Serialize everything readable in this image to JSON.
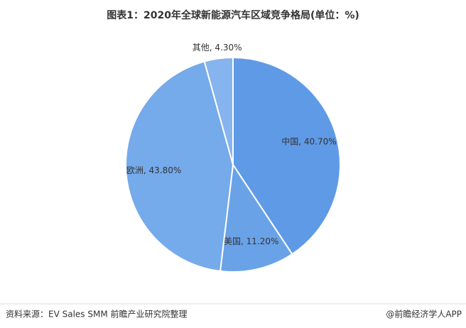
{
  "chart_data": {
    "type": "pie",
    "title": "图表1：2020年全球新能源汽车区域竞争格局(单位：%)",
    "values": [
      40.7,
      11.2,
      43.8,
      4.3
    ],
    "value_labels": [
      "中国, 40.70%",
      "美国, 11.20%",
      "欧洲, 43.80%",
      "其他, 4.30%"
    ],
    "colors": [
      "#5f9ae6",
      "#6aa2e8",
      "#75aaeb",
      "#85b4ee"
    ]
  },
  "footer": {
    "source": "资料来源：EV Sales SMM 前瞻产业研究院整理",
    "brand": "@前瞻经济学人APP"
  }
}
